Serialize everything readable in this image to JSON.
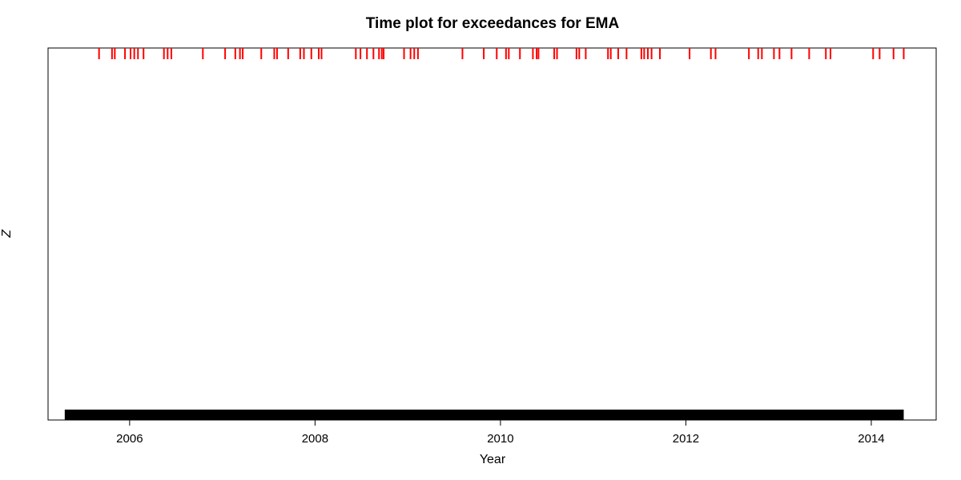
{
  "chart_data": {
    "type": "event-plot",
    "title": "Time plot for exceedances for EMA",
    "xlabel": "Year",
    "ylabel": "Z",
    "xlim": [
      2005.12,
      2014.7
    ],
    "x_ticks": [
      "2006",
      "2008",
      "2010",
      "2012",
      "2014"
    ],
    "series": [
      {
        "color": "#ff0000",
        "style": "ticks-top",
        "x": [
          2005.67,
          2005.81,
          2005.84,
          2005.95,
          2006.01,
          2006.05,
          2006.09,
          2006.15,
          2006.37,
          2006.41,
          2006.45,
          2006.79,
          2007.03,
          2007.14,
          2007.19,
          2007.22,
          2007.42,
          2007.56,
          2007.59,
          2007.71,
          2007.84,
          2007.88,
          2007.96,
          2008.04,
          2008.07,
          2008.44,
          2008.49,
          2008.56,
          2008.63,
          2008.69,
          2008.72,
          2008.74,
          2008.96,
          2009.03,
          2009.07,
          2009.11,
          2009.59,
          2009.82,
          2009.96,
          2010.06,
          2010.09,
          2010.21,
          2010.35,
          2010.39,
          2010.41,
          2010.58,
          2010.61,
          2010.82,
          2010.85,
          2010.92,
          2011.16,
          2011.19,
          2011.27,
          2011.36,
          2011.52,
          2011.55,
          2011.59,
          2011.63,
          2011.72,
          2012.04,
          2012.27,
          2012.32,
          2012.68,
          2012.78,
          2012.82,
          2012.95,
          2013.01,
          2013.14,
          2013.33,
          2013.51,
          2013.56,
          2014.02,
          2014.09,
          2014.24,
          2014.35
        ]
      },
      {
        "color": "#000000",
        "style": "band-bottom",
        "x_range": [
          2005.3,
          2014.35
        ]
      }
    ],
    "grid": false,
    "legend": "none"
  }
}
